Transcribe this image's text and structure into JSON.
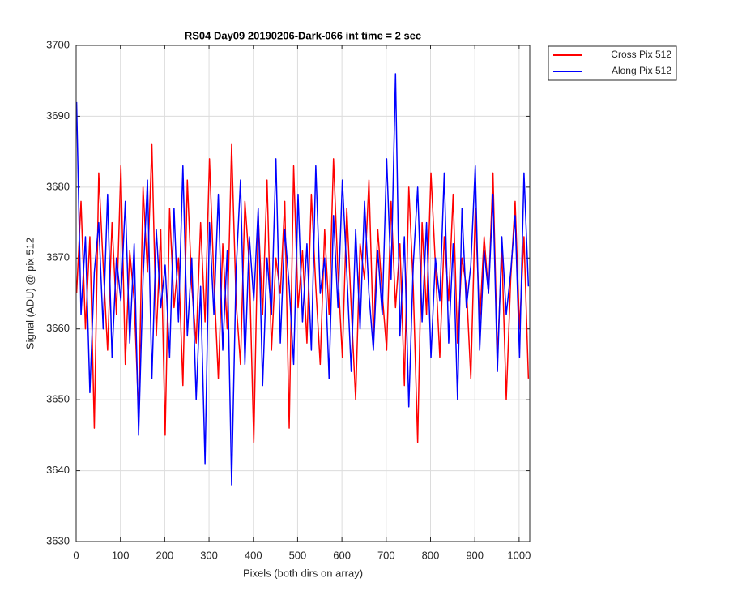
{
  "chart_data": {
    "type": "line",
    "title": "RS04 Day09 20190206-Dark-066 int time = 2 sec",
    "x_label": "Pixels (both dirs on array)",
    "y_label": "Signal (ADU) @ pix 512",
    "x": [
      1,
      11,
      21,
      31,
      41,
      51,
      61,
      71,
      81,
      91,
      101,
      111,
      121,
      131,
      141,
      151,
      161,
      171,
      181,
      191,
      201,
      211,
      221,
      231,
      241,
      251,
      261,
      271,
      281,
      291,
      301,
      311,
      321,
      331,
      341,
      351,
      361,
      371,
      381,
      391,
      401,
      411,
      421,
      431,
      441,
      451,
      461,
      471,
      481,
      491,
      501,
      511,
      521,
      531,
      541,
      551,
      561,
      571,
      581,
      591,
      601,
      611,
      621,
      631,
      641,
      651,
      661,
      671,
      681,
      691,
      701,
      711,
      721,
      731,
      741,
      751,
      761,
      771,
      781,
      791,
      801,
      811,
      821,
      831,
      841,
      851,
      861,
      871,
      881,
      891,
      901,
      911,
      921,
      931,
      941,
      951,
      961,
      971,
      981,
      991,
      1001,
      1011,
      1021
    ],
    "series": [
      {
        "name": "Cross Pix 512",
        "color": "#ff0000",
        "values": [
          3665,
          3678,
          3660,
          3673,
          3646,
          3682,
          3669,
          3657,
          3675,
          3662,
          3683,
          3655,
          3671,
          3664,
          3648,
          3680,
          3668,
          3686,
          3659,
          3674,
          3645,
          3677,
          3663,
          3670,
          3652,
          3681,
          3666,
          3658,
          3675,
          3661,
          3684,
          3667,
          3653,
          3672,
          3660,
          3686,
          3664,
          3655,
          3678,
          3669,
          3644,
          3676,
          3662,
          3681,
          3657,
          3670,
          3665,
          3678,
          3646,
          3683,
          3663,
          3671,
          3658,
          3679,
          3666,
          3655,
          3674,
          3662,
          3684,
          3668,
          3656,
          3677,
          3663,
          3650,
          3672,
          3667,
          3681,
          3659,
          3674,
          3665,
          3657,
          3678,
          3663,
          3672,
          3652,
          3680,
          3666,
          3644,
          3675,
          3662,
          3682,
          3669,
          3656,
          3673,
          3664,
          3679,
          3658,
          3670,
          3666,
          3653,
          3677,
          3661,
          3673,
          3665,
          3682,
          3656,
          3671,
          3650,
          3667,
          3678,
          3660,
          3673,
          3653
        ]
      },
      {
        "name": "Along Pix 512",
        "color": "#0000ff",
        "values": [
          3692,
          3662,
          3673,
          3651,
          3668,
          3675,
          3660,
          3679,
          3656,
          3670,
          3664,
          3678,
          3658,
          3672,
          3645,
          3667,
          3681,
          3653,
          3674,
          3663,
          3669,
          3656,
          3677,
          3661,
          3683,
          3659,
          3670,
          3650,
          3666,
          3641,
          3675,
          3662,
          3679,
          3657,
          3671,
          3638,
          3668,
          3681,
          3655,
          3673,
          3664,
          3677,
          3652,
          3670,
          3662,
          3684,
          3658,
          3674,
          3666,
          3655,
          3679,
          3661,
          3672,
          3657,
          3683,
          3665,
          3670,
          3653,
          3676,
          3663,
          3681,
          3668,
          3654,
          3674,
          3660,
          3678,
          3665,
          3657,
          3671,
          3662,
          3684,
          3667,
          3696,
          3659,
          3673,
          3649,
          3669,
          3680,
          3661,
          3675,
          3656,
          3670,
          3664,
          3682,
          3658,
          3672,
          3650,
          3677,
          3663,
          3669,
          3683,
          3657,
          3671,
          3665,
          3679,
          3654,
          3673,
          3662,
          3668,
          3676,
          3656,
          3682,
          3666
        ]
      }
    ],
    "xlim": [
      0,
      1024
    ],
    "ylim": [
      3630,
      3700
    ],
    "xticks": [
      0,
      100,
      200,
      300,
      400,
      500,
      600,
      700,
      800,
      900,
      1000
    ],
    "yticks": [
      3630,
      3640,
      3650,
      3660,
      3670,
      3680,
      3690,
      3700
    ],
    "grid": true,
    "legend": "outside-top-right"
  }
}
